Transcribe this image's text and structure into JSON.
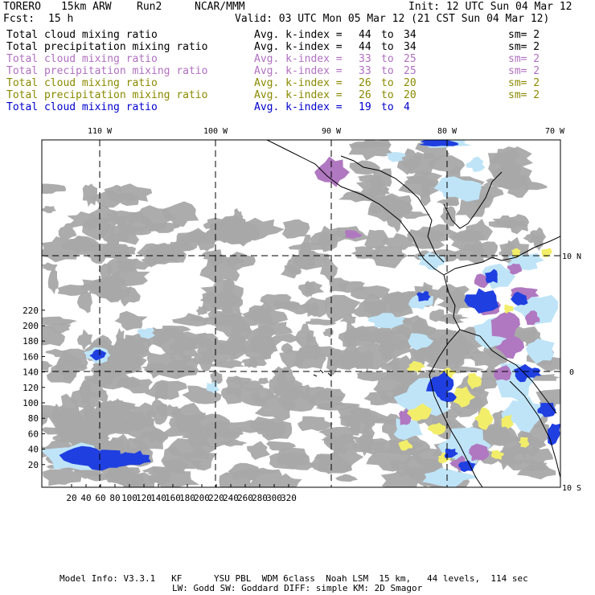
{
  "header": {
    "model": "TORERO",
    "resolution": "15km ARW",
    "run": "Run2",
    "org": "NCAR/MMM",
    "init": "Init: 12 UTC Sun 04 Mar 12",
    "fcst_label": "Fcst:",
    "fcst_value": "15 h",
    "valid": "Valid: 03 UTC Mon 05 Mar 12 (21 CST Sun 04 Mar 12)"
  },
  "legend": [
    {
      "field": "Total cloud mixing ratio",
      "kindex": "Avg. k-index =",
      "from": "44",
      "to_word": "to",
      "to": "34",
      "sm": "sm= 2",
      "color": "#000000"
    },
    {
      "field": "Total precipitation mixing ratio",
      "kindex": "Avg. k-index =",
      "from": "44",
      "to_word": "to",
      "to": "34",
      "sm": "sm= 2",
      "color": "#000000"
    },
    {
      "field": "Total cloud mixing ratio",
      "kindex": "Avg. k-index =",
      "from": "33",
      "to_word": "to",
      "to": "25",
      "sm": "sm= 2",
      "color": "#b070c0"
    },
    {
      "field": "Total precipitation mixing ratio",
      "kindex": "Avg. k-index =",
      "from": "33",
      "to_word": "to",
      "to": "25",
      "sm": "sm= 2",
      "color": "#b070c0"
    },
    {
      "field": "Total cloud mixing ratio",
      "kindex": "Avg. k-index =",
      "from": "26",
      "to_word": "to",
      "to": "20",
      "sm": "sm= 2",
      "color": "#8a8a00"
    },
    {
      "field": "Total precipitation mixing ratio",
      "kindex": "Avg. k-index =",
      "from": "26",
      "to_word": "to",
      "to": "20",
      "sm": "sm= 2",
      "color": "#8a8a00"
    },
    {
      "field": "Total cloud mixing ratio",
      "kindex": "Avg. k-index =",
      "from": "19",
      "to_word": "to",
      "to": "4",
      "sm": "",
      "color": "#0000cc"
    }
  ],
  "map": {
    "top_lon_labels": [
      "110 W",
      "100 W",
      "90 W",
      "80 W",
      "70 W"
    ],
    "right_lat_labels": [
      "10 N",
      "0",
      "10 S"
    ],
    "left_ticks": [
      "220",
      "200",
      "180",
      "160",
      "140",
      "120",
      "100",
      "80",
      "60",
      "40",
      "20"
    ],
    "bottom_ticks": [
      "20",
      "40",
      "60",
      "80",
      "100",
      "120",
      "140",
      "160",
      "180",
      "200",
      "220",
      "240",
      "260",
      "280",
      "300",
      "320"
    ],
    "colors": {
      "gray_cloud": "#a8a8a8",
      "light_blue": "#bfe4f7",
      "blue": "#1f3fe0",
      "purple": "#b078c0",
      "yellow": "#f2ee6a"
    }
  },
  "footer": {
    "line1": "Model Info: V3.3.1   KF      YSU PBL  WDM 6class  Noah LSM  15 km,   44 levels,  114 sec",
    "line2": "LW: Godd SW: Goddard DIFF: simple KM: 2D Smagor"
  }
}
